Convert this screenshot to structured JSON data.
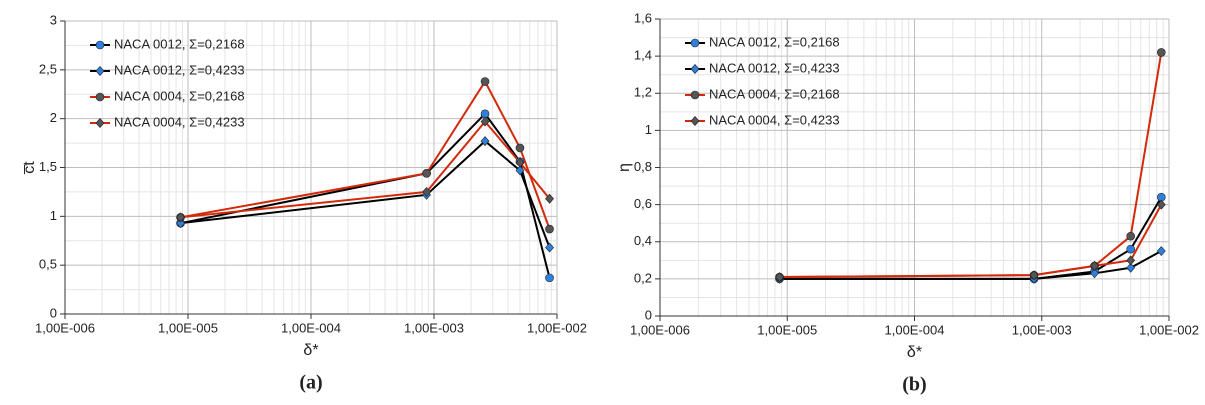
{
  "chart_data": [
    {
      "type": "line",
      "caption": "(a)",
      "xlabel": "δ*",
      "ylabel": "c̅t",
      "xscale": "log",
      "grid": true,
      "legend": "upper left",
      "x": [
        8.7e-06,
        0.00087,
        0.0026,
        0.005,
        0.0087
      ],
      "xlim": [
        1e-06,
        0.01
      ],
      "xticks": [
        {
          "value": 1e-06,
          "label": "1,00E-006"
        },
        {
          "value": 1e-05,
          "label": "1,00E-005"
        },
        {
          "value": 0.0001,
          "label": "1,00E-004"
        },
        {
          "value": 0.001,
          "label": "1,00E-003"
        },
        {
          "value": 0.01,
          "label": "1,00E-002"
        }
      ],
      "ylim": [
        0,
        3
      ],
      "yticks": [
        0,
        {
          "value": 0.5,
          "label": "0,5"
        },
        1,
        {
          "value": 1.5,
          "label": "1,5"
        },
        2,
        {
          "value": 2.5,
          "label": "2,5"
        },
        3
      ],
      "series": [
        {
          "name": "NACA 0012, Σ=0,2168",
          "color": "#000000",
          "marker": "circle",
          "marker_color": "#2f7fdc",
          "values": [
            0.93,
            1.44,
            2.05,
            1.56,
            0.37
          ]
        },
        {
          "name": "NACA 0012, Σ=0,4233",
          "color": "#000000",
          "marker": "diamond",
          "marker_color": "#2f7fdc",
          "values": [
            0.93,
            1.22,
            1.77,
            1.47,
            0.68
          ]
        },
        {
          "name": "NACA 0004, Σ=0,2168",
          "color": "#d42a0c",
          "marker": "circle",
          "marker_color": "#555555",
          "values": [
            0.99,
            1.44,
            2.38,
            1.7,
            0.87
          ]
        },
        {
          "name": "NACA 0004, Σ=0,4233",
          "color": "#d42a0c",
          "marker": "diamond",
          "marker_color": "#555555",
          "values": [
            0.99,
            1.25,
            1.97,
            1.55,
            1.18
          ]
        }
      ]
    },
    {
      "type": "line",
      "caption": "(b)",
      "xlabel": "δ*",
      "ylabel": "η",
      "xscale": "log",
      "grid": true,
      "legend": "upper left",
      "x": [
        8.7e-06,
        0.00087,
        0.0026,
        0.005,
        0.0087
      ],
      "xlim": [
        1e-06,
        0.01
      ],
      "xticks": [
        {
          "value": 1e-06,
          "label": "1,00E-006"
        },
        {
          "value": 1e-05,
          "label": "1,00E-005"
        },
        {
          "value": 0.0001,
          "label": "1,00E-004"
        },
        {
          "value": 0.001,
          "label": "1,00E-003"
        },
        {
          "value": 0.01,
          "label": "1,00E-002"
        }
      ],
      "ylim": [
        0,
        1.6
      ],
      "yticks": [
        0,
        {
          "value": 0.2,
          "label": "0,2"
        },
        {
          "value": 0.4,
          "label": "0,4"
        },
        {
          "value": 0.6,
          "label": "0,6"
        },
        {
          "value": 0.8,
          "label": "0,8"
        },
        1,
        {
          "value": 1.2,
          "label": "1,2"
        },
        {
          "value": 1.4,
          "label": "1,4"
        },
        {
          "value": 1.6,
          "label": "1,6"
        }
      ],
      "series": [
        {
          "name": "NACA 0012, Σ=0,2168",
          "color": "#000000",
          "marker": "circle",
          "marker_color": "#2f7fdc",
          "values": [
            0.2,
            0.2,
            0.24,
            0.36,
            0.64
          ]
        },
        {
          "name": "NACA 0012, Σ=0,4233",
          "color": "#000000",
          "marker": "diamond",
          "marker_color": "#2f7fdc",
          "values": [
            0.2,
            0.2,
            0.23,
            0.26,
            0.35
          ]
        },
        {
          "name": "NACA 0004, Σ=0,2168",
          "color": "#d42a0c",
          "marker": "circle",
          "marker_color": "#555555",
          "values": [
            0.21,
            0.22,
            0.27,
            0.43,
            1.42
          ]
        },
        {
          "name": "NACA 0004, Σ=0,4233",
          "color": "#d42a0c",
          "marker": "diamond",
          "marker_color": "#555555",
          "values": [
            0.21,
            0.22,
            0.27,
            0.3,
            0.6
          ]
        }
      ]
    }
  ]
}
